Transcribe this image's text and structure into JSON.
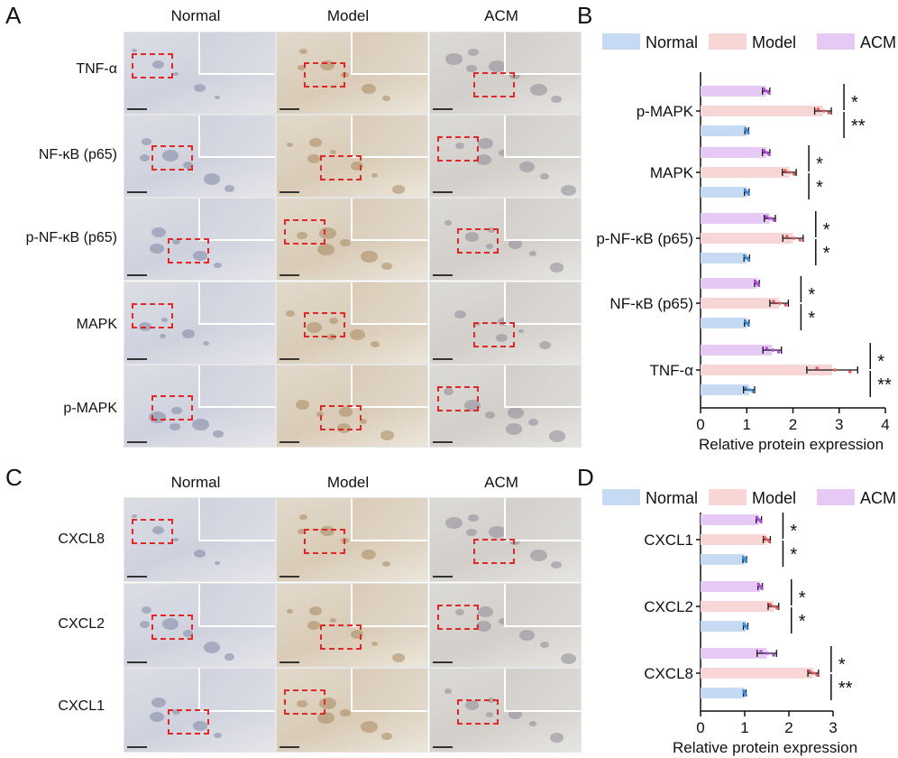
{
  "panels": {
    "A": {
      "letter": "A",
      "columns": [
        "Normal",
        "Model",
        "ACM"
      ],
      "rows": [
        "TNF-α",
        "NF-κB (p65)",
        "p-NF-κB (p65)",
        "MAPK",
        "p-MAPK"
      ]
    },
    "B": {
      "letter": "B"
    },
    "C": {
      "letter": "C",
      "columns": [
        "Normal",
        "Model",
        "ACM"
      ],
      "rows": [
        "CXCL8",
        "CXCL2",
        "CXCL1"
      ]
    },
    "D": {
      "letter": "D"
    }
  },
  "colors": {
    "normal": "#c7daf3",
    "model": "#f9d6d6",
    "acm": "#e6c9f5",
    "normal_dot": "#3d8fe0",
    "model_dot": "#e85a5a",
    "acm_dot": "#b24fe0",
    "roi": "#e32626"
  },
  "chart_data": [
    {
      "type": "bar",
      "orientation": "horizontal",
      "title": "",
      "xlabel": "Relative protein expression",
      "xlim": [
        0,
        4
      ],
      "xticks": [
        0,
        1,
        2,
        3,
        4
      ],
      "legend": [
        "Normal",
        "Model",
        "ACM"
      ],
      "legend_position": "top",
      "categories": [
        "p-MAPK",
        "MAPK",
        "p-NF-κB (p65)",
        "NF-κB (p65)",
        "TNF-α"
      ],
      "series": [
        {
          "name": "ACM",
          "values": [
            1.42,
            1.42,
            1.5,
            1.22,
            1.55
          ],
          "errors": [
            0.08,
            0.08,
            0.12,
            0.05,
            0.2
          ]
        },
        {
          "name": "Model",
          "values": [
            2.65,
            1.92,
            2.0,
            1.7,
            2.85
          ],
          "errors": [
            0.18,
            0.15,
            0.22,
            0.2,
            0.55
          ]
        },
        {
          "name": "Normal",
          "values": [
            1.0,
            1.0,
            1.0,
            1.0,
            1.05
          ],
          "errors": [
            0.04,
            0.05,
            0.06,
            0.05,
            0.12
          ]
        }
      ],
      "significance": [
        [
          "*",
          "**"
        ],
        [
          "*",
          "*"
        ],
        [
          "*",
          "*"
        ],
        [
          "*",
          "*"
        ],
        [
          "*",
          "**"
        ]
      ]
    },
    {
      "type": "bar",
      "orientation": "horizontal",
      "title": "",
      "xlabel": "Relative protein expression",
      "xlim": [
        0,
        3
      ],
      "xticks": [
        0,
        1,
        2,
        3
      ],
      "legend": [
        "Normal",
        "Model",
        "ACM"
      ],
      "legend_position": "top",
      "categories": [
        "CXCL1",
        "CXCL2",
        "CXCL8"
      ],
      "series": [
        {
          "name": "ACM",
          "values": [
            1.32,
            1.35,
            1.5
          ],
          "errors": [
            0.06,
            0.05,
            0.22
          ]
        },
        {
          "name": "Model",
          "values": [
            1.5,
            1.65,
            2.55
          ],
          "errors": [
            0.08,
            0.12,
            0.12
          ]
        },
        {
          "name": "Normal",
          "values": [
            1.0,
            1.02,
            1.0
          ],
          "errors": [
            0.04,
            0.05,
            0.03
          ]
        }
      ],
      "significance": [
        [
          "*",
          "*"
        ],
        [
          "*",
          "*"
        ],
        [
          "*",
          "**"
        ]
      ]
    }
  ]
}
